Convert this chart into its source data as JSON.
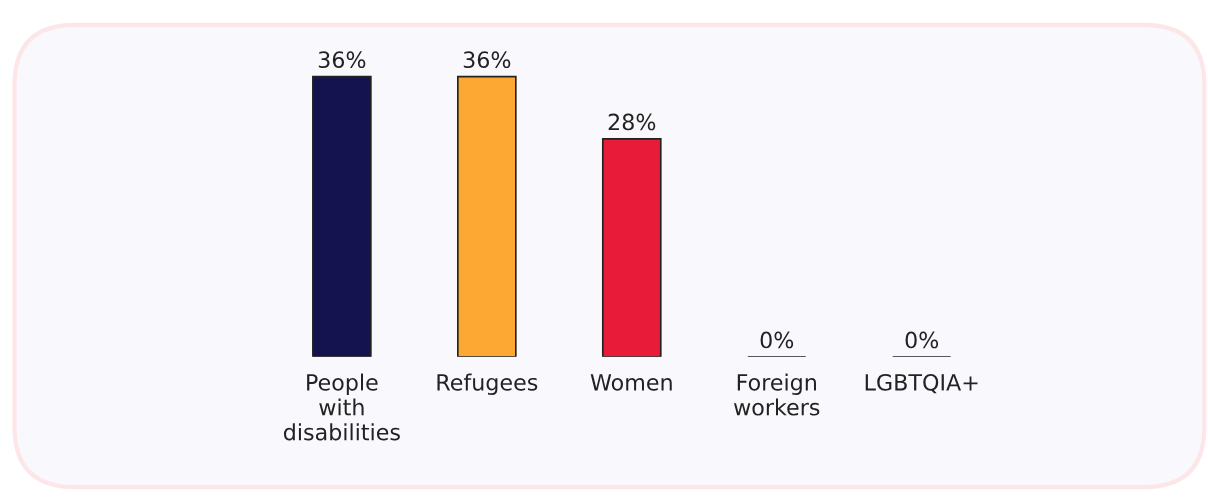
{
  "chart_data": {
    "type": "bar",
    "categories": [
      "People\nwith\ndisabilities",
      "Refugees",
      "Women",
      "Foreign\nworkers",
      "LGBTQIA+"
    ],
    "values": [
      36,
      36,
      28,
      0,
      0
    ],
    "value_labels": [
      "36%",
      "36%",
      "28%",
      "0%",
      "0%"
    ],
    "colors": [
      "#14124f",
      "#fca832",
      "#e81c39",
      "#222222",
      "#222222"
    ],
    "tick_labels": "x"
  }
}
